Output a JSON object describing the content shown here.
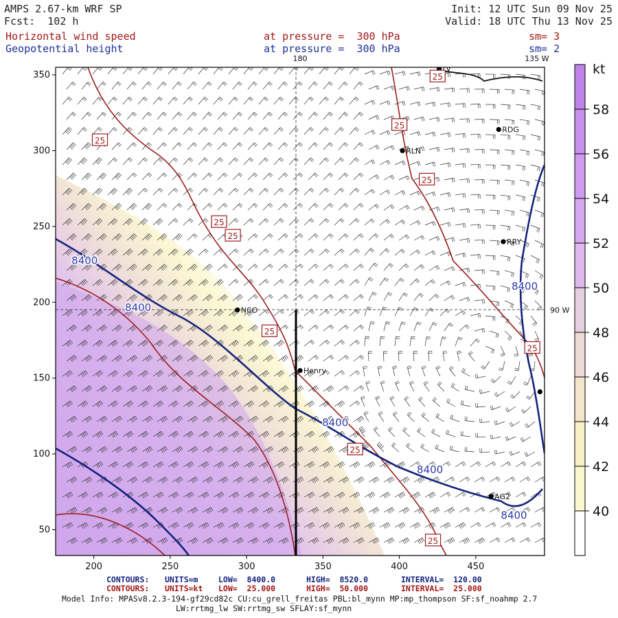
{
  "header": {
    "model": "AMPS 2.67-km WRF SP",
    "forecast": "Fcst:  102 h",
    "init": "Init: 12 UTC Sun 09 Nov 25",
    "valid": "Valid: 18 UTC Thu 13 Nov 25",
    "field1_name": "Horizontal wind speed",
    "field1_level": "at pressure =  300 hPa",
    "field1_sm": "sm= 3",
    "field2_name": "Geopotential height",
    "field2_level": "at pressure =  300 hPa",
    "field2_sm": "sm= 2"
  },
  "colors": {
    "accent_red": "#a01818",
    "accent_blue": "#1f2f9a",
    "purple": "#c79be8",
    "yellow": "#fbf7cf"
  },
  "chart_data": {
    "type": "contour-map",
    "xlim": [
      175,
      495
    ],
    "ylim": [
      33,
      355
    ],
    "xticks": [
      200,
      250,
      300,
      350,
      400,
      450
    ],
    "yticks": [
      50,
      100,
      150,
      200,
      250,
      300,
      350
    ],
    "grid_labels": [
      {
        "text": "180",
        "x": 335,
        "y": 355
      },
      {
        "text": "135 W",
        "x": 490,
        "y": 355
      },
      {
        "text": "90 W",
        "x": 508,
        "y": 195
      }
    ],
    "meridian_x": 335,
    "parallel_y": 195,
    "cross_section": {
      "x": 335,
      "y_from": 195,
      "y_to": 33
    },
    "stations": [
      {
        "name": "NCO",
        "x": 294,
        "y": 195
      },
      {
        "name": "Henry",
        "x": 335,
        "y": 155
      },
      {
        "name": "RLN",
        "x": 402,
        "y": 300
      },
      {
        "name": "RDG",
        "x": 465,
        "y": 314
      },
      {
        "name": "RRY",
        "x": 468,
        "y": 240
      },
      {
        "name": "AG2",
        "x": 460,
        "y": 72
      },
      {
        "name": "LV",
        "x": 426,
        "y": 354
      },
      {
        "name": "",
        "x": 492,
        "y": 141
      }
    ],
    "wind_contour_labels": [
      {
        "text": "25",
        "x": 204,
        "y": 307
      },
      {
        "text": "25",
        "x": 282,
        "y": 253
      },
      {
        "text": "25",
        "x": 291,
        "y": 244
      },
      {
        "text": "25",
        "x": 400,
        "y": 317
      },
      {
        "text": "25",
        "x": 418,
        "y": 281
      },
      {
        "text": "25",
        "x": 425,
        "y": 349
      },
      {
        "text": "25",
        "x": 315,
        "y": 181
      },
      {
        "text": "25",
        "x": 371,
        "y": 103
      },
      {
        "text": "25",
        "x": 422,
        "y": 43
      },
      {
        "text": "25",
        "x": 487,
        "y": 170
      }
    ],
    "height_contour_labels": [
      {
        "text": "8400",
        "x": 194,
        "y": 228
      },
      {
        "text": "8400",
        "x": 229,
        "y": 197
      },
      {
        "text": "8400",
        "x": 358,
        "y": 121
      },
      {
        "text": "8400",
        "x": 420,
        "y": 90
      },
      {
        "text": "8400",
        "x": 475,
        "y": 60
      },
      {
        "text": "8400",
        "x": 482,
        "y": 211
      }
    ],
    "colorbar": {
      "unit": "kt",
      "ticks": [
        40,
        42,
        44,
        46,
        48,
        50,
        52,
        54,
        56,
        58
      ],
      "colors": [
        "#ffffff",
        "#fbf7cf",
        "#f7f0c6",
        "#f3e6cc",
        "#eddbd6",
        "#e6cfe0",
        "#deb9ed",
        "#d6a9ef",
        "#ce9bef",
        "#c690ec",
        "#bf84ea"
      ]
    }
  },
  "footer": {
    "contours1_title": "CONTOURS:",
    "contours1_units": "UNITS=m",
    "contours1_low": "LOW=  8400.0",
    "contours1_high": "HIGH=  8520.0",
    "contours1_interval": "INTERVAL=  120.00",
    "contours2_title": "CONTOURS:",
    "contours2_units": "UNITS=kt",
    "contours2_low": "LOW=  25.000",
    "contours2_high": "HIGH=  50.000",
    "contours2_interval": "INTERVAL=  25.000",
    "model_info_1": "Model Info: MPASv8.2.3-194-gf29cd82c CU:cu_grell_freitas PBL:bl_mynn MP:mp_thompson SF:sf_noahmp 2.7",
    "model_info_2": "LW:rrtmg_lw SW:rrtmg_sw SFLAY:sf_mynn"
  }
}
